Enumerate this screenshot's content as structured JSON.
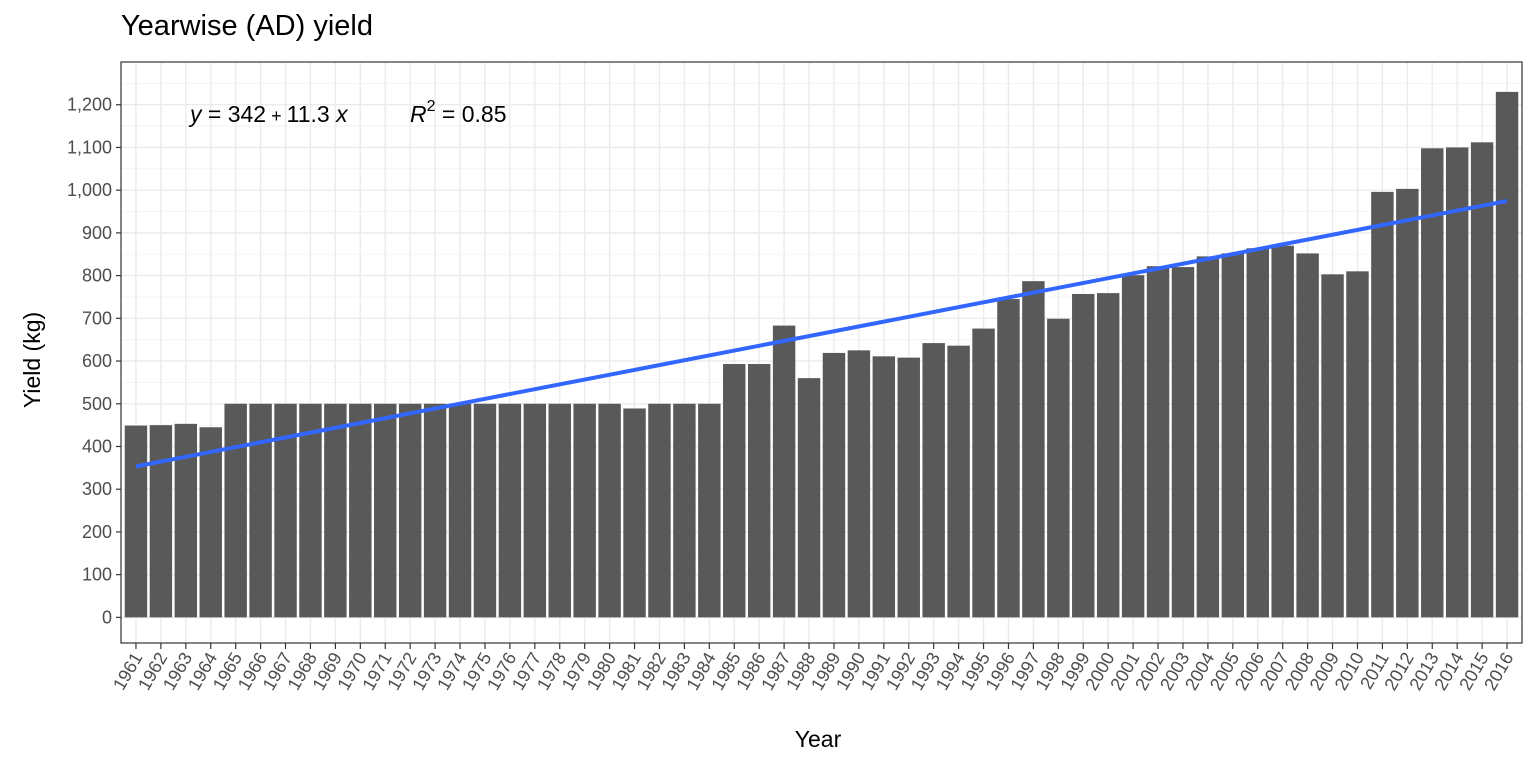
{
  "chart_data": {
    "type": "bar",
    "title": "Yearwise (AD) yield",
    "xlabel": "Year",
    "ylabel": "Yield (kg)",
    "ylim": [
      -60,
      1300
    ],
    "yticks": [
      "0",
      "100",
      "200",
      "300",
      "400",
      "500",
      "600",
      "700",
      "800",
      "900",
      "1,000",
      "1,100",
      "1,200"
    ],
    "grid": true,
    "bar_color": "#595959",
    "trend_color": "#3366ff",
    "categories": [
      "1961",
      "1962",
      "1963",
      "1964",
      "1965",
      "1966",
      "1967",
      "1968",
      "1969",
      "1970",
      "1971",
      "1972",
      "1973",
      "1974",
      "1975",
      "1976",
      "1977",
      "1978",
      "1979",
      "1980",
      "1981",
      "1982",
      "1983",
      "1984",
      "1985",
      "1986",
      "1987",
      "1988",
      "1989",
      "1990",
      "1991",
      "1992",
      "1993",
      "1994",
      "1995",
      "1996",
      "1997",
      "1998",
      "1999",
      "2000",
      "2001",
      "2002",
      "2003",
      "2004",
      "2005",
      "2006",
      "2007",
      "2008",
      "2009",
      "2010",
      "2011",
      "2012",
      "2013",
      "2014",
      "2015",
      "2016"
    ],
    "values": [
      449,
      450,
      453,
      445,
      500,
      500,
      500,
      500,
      500,
      500,
      500,
      500,
      500,
      500,
      500,
      500,
      500,
      500,
      500,
      500,
      489,
      500,
      500,
      500,
      593,
      593,
      683,
      560,
      619,
      625,
      611,
      608,
      642,
      636,
      676,
      745,
      787,
      699,
      757,
      759,
      801,
      822,
      820,
      845,
      852,
      864,
      870,
      852,
      803,
      810,
      996,
      1003,
      1098,
      1100,
      1112,
      1230
    ],
    "trend": {
      "intercept": 342,
      "slope": 11.3
    },
    "annotation": {
      "y_label": "y",
      "eq_rest": " = 342",
      "plus": " + ",
      "slope_text": "11.3 ",
      "x_label": "x",
      "r_label": "R",
      "r_sup": "2",
      "r_rest": " = 0.85"
    }
  }
}
